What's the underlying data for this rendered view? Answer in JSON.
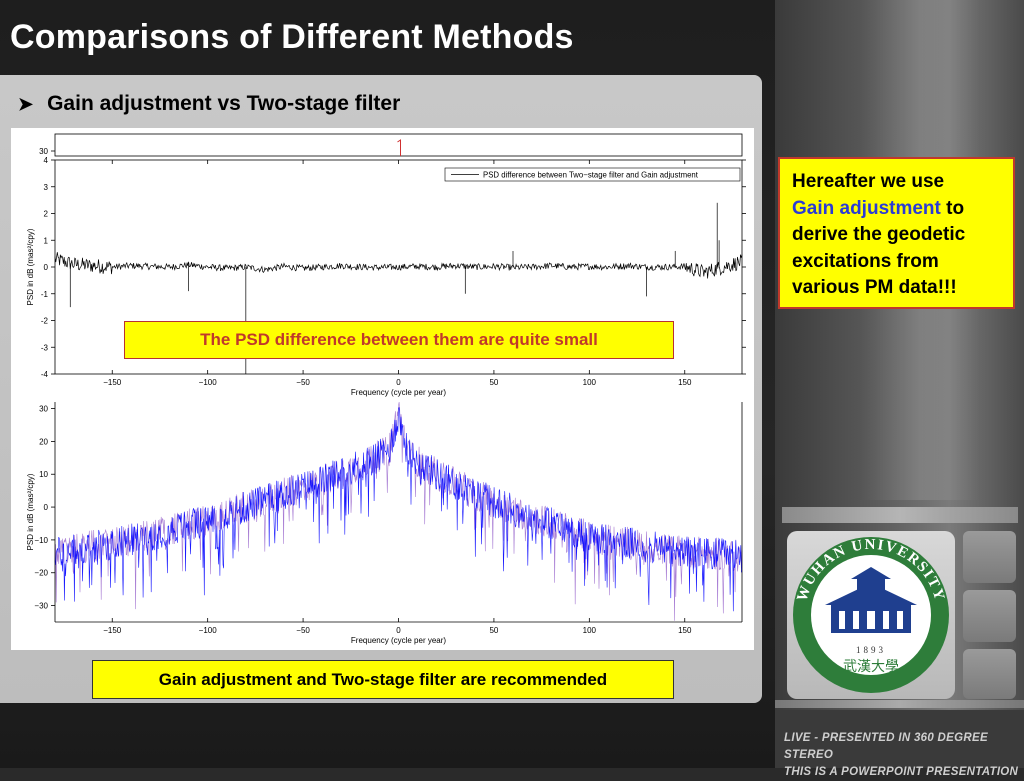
{
  "slide": {
    "title": "Comparisons of Different Methods",
    "bullet": "Gain adjustment vs Two-stage filter",
    "bullet_icon": "arrow-bullet-icon",
    "callout": {
      "line1": "Hereafter we use",
      "highlight": "Gain adjustment",
      "line2": " to derive the geodetic excitations from various PM data!!!"
    },
    "note_small": "The PSD difference between them are quite small",
    "note_bottom": "Gain adjustment and Two-stage filter are recommended",
    "footer_line1": "LIVE - PRESENTED IN 360 DEGREE STEREO",
    "footer_line2": "THIS IS A POWERPOINT PRESENTATION",
    "logo": {
      "text_top": "WUHAN UNIVERSITY",
      "year": "1893",
      "colors": {
        "ring": "#2e7d3a",
        "building": "#1f3f8f"
      }
    },
    "colors": {
      "accent_yellow": "#ffff00",
      "note_red": "#c0392b",
      "blue_text": "#2a3bd6"
    }
  },
  "chart_data": [
    {
      "type": "line",
      "title": "",
      "legend": "PSD difference between Two−stage filter and Gain adjustment",
      "legend_position": "top-right",
      "xlabel": "Frequency (cycle per year)",
      "ylabel": "PSD in dB (mas²/cpy)",
      "xlim": [
        -180,
        180
      ],
      "ylim": [
        -4,
        4
      ],
      "xticks": [
        -150,
        -100,
        -50,
        0,
        50,
        100,
        150
      ],
      "yticks": [
        4,
        3,
        2,
        1,
        0,
        -1,
        -2,
        -3,
        -4
      ],
      "top_strip_ytick": 30,
      "color": "#000000",
      "series": [
        {
          "x": [
            -180,
            -170,
            -160,
            -150,
            -140,
            -130,
            -120,
            -110,
            -100,
            -90,
            -80,
            -70,
            -60,
            -50,
            -40,
            -30,
            -20,
            -10,
            0,
            10,
            20,
            30,
            40,
            50,
            60,
            70,
            80,
            90,
            100,
            110,
            120,
            130,
            140,
            150,
            160,
            170,
            180
          ],
          "y": [
            0.3,
            0.1,
            0.05,
            0.0,
            0.05,
            0.02,
            0.0,
            0.08,
            0.0,
            -0.05,
            0.0,
            -0.1,
            0.02,
            -0.05,
            0.0,
            0.05,
            0.0,
            -0.02,
            0.0,
            0.02,
            0.0,
            0.05,
            0.0,
            0.02,
            -0.02,
            0.0,
            0.05,
            0.0,
            0.02,
            0.0,
            0.05,
            0.0,
            0.0,
            0.02,
            -0.2,
            0.0,
            0.2
          ]
        }
      ],
      "spikes": [
        {
          "x": -80,
          "y": -4.0
        },
        {
          "x": 167,
          "y": 2.4
        },
        {
          "x": 168,
          "y": 1.0
        },
        {
          "x": 145,
          "y": 0.6
        },
        {
          "x": 130,
          "y": -1.1
        },
        {
          "x": -172,
          "y": -1.5
        },
        {
          "x": -110,
          "y": -0.9
        },
        {
          "x": 35,
          "y": -1.0
        },
        {
          "x": 60,
          "y": 0.6
        }
      ]
    },
    {
      "type": "line",
      "title": "",
      "xlabel": "Frequency (cycle per year)",
      "ylabel": "PSD in dB (mas²/cpy)",
      "xlim": [
        -180,
        180
      ],
      "ylim": [
        -35,
        32
      ],
      "xticks": [
        -150,
        -100,
        -50,
        0,
        50,
        100,
        150
      ],
      "yticks": [
        30,
        20,
        10,
        0,
        -10,
        -20,
        -30
      ],
      "series": [
        {
          "name": "",
          "color": "#0000ff",
          "x": [
            -180,
            -160,
            -140,
            -120,
            -100,
            -80,
            -60,
            -40,
            -20,
            -5,
            0,
            5,
            20,
            40,
            60,
            80,
            100,
            120,
            140,
            160,
            180
          ],
          "y": [
            -14,
            -12,
            -10,
            -7,
            -4,
            0,
            4,
            8,
            13,
            17,
            28,
            16,
            10,
            4,
            -1,
            -5,
            -9,
            -11,
            -13,
            -14,
            -15
          ]
        },
        {
          "name": "",
          "color": "#9966cc",
          "x": [
            -180,
            -160,
            -140,
            -120,
            -100,
            -80,
            -60,
            -40,
            -20,
            -5,
            0,
            5,
            20,
            40,
            60,
            80,
            100,
            120,
            140,
            160,
            180
          ],
          "y": [
            -14,
            -12,
            -10,
            -7,
            -4,
            0,
            4,
            8,
            13,
            17,
            30,
            16,
            10,
            4,
            -1,
            -5,
            -9,
            -11,
            -13,
            -14,
            -15
          ]
        }
      ]
    }
  ]
}
